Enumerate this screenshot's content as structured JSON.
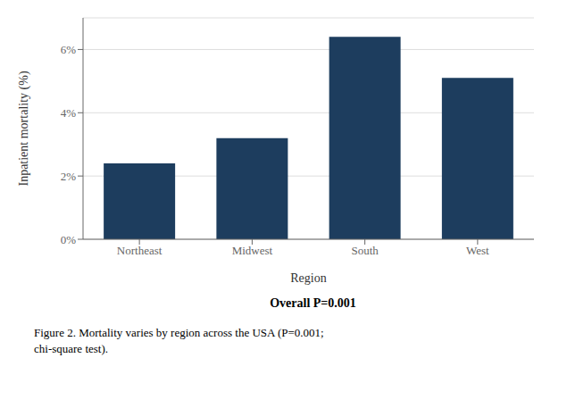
{
  "chart_data": {
    "type": "bar",
    "categories": [
      "Northeast",
      "Midwest",
      "South",
      "West"
    ],
    "values": [
      2.4,
      3.2,
      6.4,
      5.1
    ],
    "color": "#1d3d5e",
    "ylabel": "Inpatient mortality (%)",
    "xlabel": "Region",
    "annotations": [
      "Overall P=0.001"
    ],
    "caption": "Figure 2. Mortality varies by region across the USA (P=0.001;\nchi-square test).",
    "ylim": [
      0,
      7.0
    ],
    "yticks": [
      {
        "value": 0,
        "label": "0%"
      },
      {
        "value": 2,
        "label": "2%"
      },
      {
        "value": 4,
        "label": "4%"
      },
      {
        "value": 6,
        "label": "6%"
      }
    ],
    "grid": true
  }
}
